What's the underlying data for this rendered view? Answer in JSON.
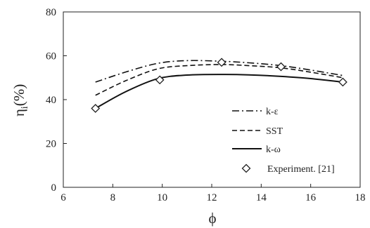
{
  "chart_data": {
    "type": "line",
    "xlabel": "ϕ",
    "ylabel_main": "η",
    "ylabel_sub": "i",
    "ylabel_unit": "(%)",
    "xlim": [
      6,
      18
    ],
    "ylim": [
      0,
      80
    ],
    "xticks": [
      6,
      8,
      10,
      12,
      14,
      16,
      18
    ],
    "yticks": [
      0,
      20,
      40,
      60,
      80
    ],
    "grid": false,
    "legend_position": "bottom-right",
    "series": [
      {
        "name": "k-ε",
        "style": "dash-dot",
        "x": [
          7.3,
          8.5,
          9.8,
          11.0,
          12.4,
          13.5,
          14.8,
          16.0,
          17.3
        ],
        "y": [
          48.0,
          52.5,
          56.5,
          57.8,
          57.5,
          56.8,
          55.5,
          53.5,
          51.0
        ]
      },
      {
        "name": "SST",
        "style": "dash",
        "x": [
          7.3,
          8.5,
          9.8,
          11.0,
          12.4,
          13.5,
          14.8,
          16.0,
          17.3
        ],
        "y": [
          42.0,
          48.5,
          54.0,
          55.5,
          56.0,
          55.5,
          54.5,
          52.5,
          50.0
        ]
      },
      {
        "name": "k-ω",
        "style": "solid",
        "x": [
          7.3,
          8.5,
          9.8,
          11.0,
          12.4,
          13.5,
          14.8,
          16.0,
          17.3
        ],
        "y": [
          36.0,
          43.5,
          49.5,
          51.2,
          51.5,
          51.3,
          50.6,
          49.6,
          48.0
        ]
      },
      {
        "name": "Experiment. [21]",
        "style": "marker",
        "x": [
          7.3,
          9.9,
          12.4,
          14.8,
          17.3
        ],
        "y": [
          36.0,
          49.0,
          57.0,
          55.0,
          48.0
        ]
      }
    ]
  }
}
